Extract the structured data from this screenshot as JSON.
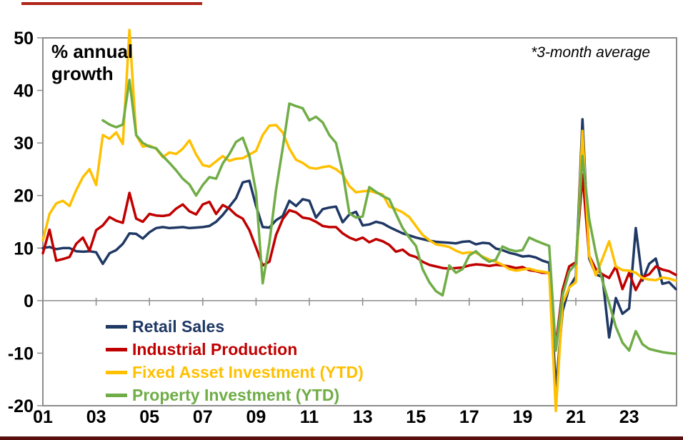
{
  "frame": {
    "top_stripe_color": "#B02318",
    "bottom_bar_color": "#5A0F0F",
    "axis_color": "#8C8C8C"
  },
  "chart_data": {
    "type": "line",
    "title": "",
    "in_plot_label": "% annual growth",
    "annotation": "*3-month average",
    "grid": false,
    "legend_position": "inside-bottom-left",
    "ylim": [
      -20,
      50
    ],
    "xlim": [
      2001,
      2024.78
    ],
    "y_ticks": [
      50,
      40,
      30,
      20,
      10,
      0,
      -10,
      -20
    ],
    "x_tick_years": [
      2001,
      2003,
      2005,
      2007,
      2009,
      2011,
      2013,
      2015,
      2017,
      2019,
      2021,
      2023
    ],
    "x_tick_labels": [
      "01",
      "03",
      "05",
      "07",
      "09",
      "11",
      "13",
      "15",
      "17",
      "19",
      "21",
      "23"
    ],
    "x_unit": "year (quarterly points)",
    "x": [
      2001,
      2001.25,
      2001.5,
      2001.75,
      2002,
      2002.25,
      2002.5,
      2002.75,
      2003,
      2003.25,
      2003.5,
      2003.75,
      2004,
      2004.25,
      2004.5,
      2004.75,
      2005,
      2005.25,
      2005.5,
      2005.75,
      2006,
      2006.25,
      2006.5,
      2006.75,
      2007,
      2007.25,
      2007.5,
      2007.75,
      2008,
      2008.25,
      2008.5,
      2008.75,
      2009,
      2009.25,
      2009.5,
      2009.75,
      2010,
      2010.25,
      2010.5,
      2010.75,
      2011,
      2011.25,
      2011.5,
      2011.75,
      2012,
      2012.25,
      2012.5,
      2012.75,
      2013,
      2013.25,
      2013.5,
      2013.75,
      2014,
      2014.25,
      2014.5,
      2014.75,
      2015,
      2015.25,
      2015.5,
      2015.75,
      2016,
      2016.25,
      2016.5,
      2016.75,
      2017,
      2017.25,
      2017.5,
      2017.75,
      2018,
      2018.25,
      2018.5,
      2018.75,
      2019,
      2019.25,
      2019.5,
      2019.75,
      2020,
      2020.25,
      2020.5,
      2020.75,
      2021,
      2021.25,
      2021.5,
      2021.75,
      2022,
      2022.25,
      2022.5,
      2022.75,
      2023,
      2023.25,
      2023.5,
      2023.75,
      2024,
      2024.25,
      2024.5,
      2024.75
    ],
    "series": [
      {
        "name": "Retail Sales",
        "color": "#1F3864",
        "values": [
          10.0,
          10.2,
          9.8,
          10.0,
          10.0,
          9.4,
          9.3,
          9.4,
          9.2,
          7.0,
          9.0,
          9.6,
          10.8,
          12.8,
          12.7,
          11.8,
          13.0,
          13.8,
          14.0,
          13.8,
          13.9,
          14.0,
          13.8,
          13.9,
          14.0,
          14.2,
          15.0,
          16.3,
          17.9,
          19.5,
          22.5,
          22.8,
          18.0,
          14.0,
          13.9,
          15.3,
          16.1,
          19.0,
          18.0,
          19.3,
          19.0,
          15.8,
          17.4,
          17.7,
          17.9,
          14.9,
          16.4,
          16.9,
          14.3,
          14.5,
          15.0,
          14.7,
          14.0,
          13.4,
          12.8,
          12.4,
          12.0,
          11.7,
          11.4,
          11.2,
          11.1,
          11.0,
          10.9,
          11.2,
          11.3,
          10.7,
          11.0,
          10.9,
          9.9,
          9.6,
          9.1,
          8.8,
          8.4,
          8.5,
          8.2,
          7.6,
          7.2,
          -17.0,
          -2.0,
          2.5,
          4.6,
          34.5,
          8.0,
          5.0,
          4.5,
          -7.0,
          0.5,
          -2.5,
          -1.5,
          13.8,
          3.8,
          7.0,
          8.0,
          3.2,
          3.5,
          2.2
        ]
      },
      {
        "name": "Industrial Production",
        "color": "#C00000",
        "values": [
          9.0,
          13.5,
          7.6,
          7.9,
          8.3,
          10.8,
          12.0,
          9.5,
          13.4,
          14.3,
          15.9,
          15.2,
          14.8,
          20.5,
          15.6,
          15.0,
          16.5,
          16.2,
          16.1,
          16.3,
          17.5,
          18.3,
          17.0,
          16.4,
          18.3,
          18.8,
          16.5,
          18.2,
          17.5,
          16.3,
          15.6,
          13.4,
          10.1,
          6.7,
          7.4,
          12.5,
          15.5,
          17.2,
          16.8,
          15.8,
          15.6,
          15.0,
          14.2,
          14.0,
          14.0,
          12.8,
          12.0,
          11.5,
          12.0,
          11.1,
          11.7,
          11.3,
          10.6,
          9.3,
          9.7,
          8.7,
          8.3,
          7.4,
          6.8,
          6.5,
          6.2,
          6.1,
          6.2,
          6.3,
          6.7,
          6.9,
          6.8,
          6.6,
          6.8,
          6.7,
          6.5,
          6.2,
          6.4,
          5.8,
          5.6,
          5.3,
          5.3,
          -8.5,
          2.0,
          6.5,
          7.3,
          24.0,
          8.5,
          6.0,
          5.0,
          4.3,
          6.5,
          2.2,
          5.3,
          2.0,
          4.5,
          5.0,
          6.5,
          5.9,
          5.6,
          4.9
        ]
      },
      {
        "name": "Fixed Asset Investment (YTD)",
        "color": "#FFC000",
        "values": [
          11.5,
          16.5,
          18.5,
          19.0,
          18.0,
          21.0,
          23.5,
          25.0,
          22.0,
          31.5,
          30.8,
          32.0,
          29.8,
          51.5,
          31.5,
          29.3,
          29.5,
          28.9,
          27.3,
          28.2,
          27.9,
          28.9,
          30.5,
          27.8,
          25.8,
          25.5,
          26.5,
          27.5,
          26.6,
          27.0,
          27.1,
          27.8,
          28.5,
          31.5,
          33.3,
          33.4,
          32.0,
          28.9,
          26.8,
          26.2,
          25.3,
          25.1,
          25.4,
          25.6,
          25.0,
          24.0,
          21.8,
          20.6,
          20.8,
          20.9,
          20.5,
          20.2,
          17.9,
          17.4,
          16.8,
          15.9,
          14.2,
          12.5,
          11.5,
          10.7,
          10.5,
          10.2,
          9.5,
          9.0,
          9.2,
          9.1,
          8.4,
          7.8,
          7.4,
          6.8,
          6.0,
          5.7,
          5.9,
          6.1,
          5.7,
          5.5,
          5.3,
          -21.0,
          -0.5,
          2.5,
          3.5,
          32.3,
          8.5,
          4.8,
          8.0,
          11.3,
          6.5,
          5.8,
          5.7,
          5.3,
          4.3,
          4.0,
          3.9,
          4.4,
          4.2,
          3.8
        ]
      },
      {
        "name": "Property Investment (YTD)",
        "color": "#70AD47",
        "values": [
          null,
          null,
          null,
          null,
          null,
          null,
          null,
          null,
          null,
          34.3,
          33.5,
          33.0,
          33.5,
          42.0,
          31.5,
          30.0,
          29.3,
          29.0,
          27.5,
          26.2,
          24.8,
          23.2,
          22.1,
          20.0,
          22.0,
          23.5,
          23.2,
          26.1,
          27.9,
          30.2,
          31.0,
          27.5,
          20.6,
          3.3,
          11.0,
          21.1,
          29.0,
          37.5,
          37.0,
          36.6,
          34.3,
          35.0,
          33.9,
          31.5,
          30.0,
          24.5,
          16.6,
          15.8,
          16.0,
          21.6,
          20.7,
          19.9,
          19.3,
          16.5,
          13.8,
          12.0,
          10.4,
          6.0,
          3.5,
          1.8,
          1.0,
          6.7,
          5.3,
          6.0,
          8.6,
          9.4,
          8.2,
          7.4,
          7.8,
          10.3,
          9.7,
          9.4,
          9.6,
          12.0,
          11.4,
          10.9,
          10.4,
          -9.5,
          1.0,
          5.5,
          7.0,
          27.5,
          15.5,
          9.0,
          3.7,
          -0.5,
          -5.0,
          -8.0,
          -9.5,
          -5.8,
          -8.3,
          -9.2,
          -9.5,
          -9.8,
          -10.0,
          -10.1
        ]
      }
    ]
  }
}
